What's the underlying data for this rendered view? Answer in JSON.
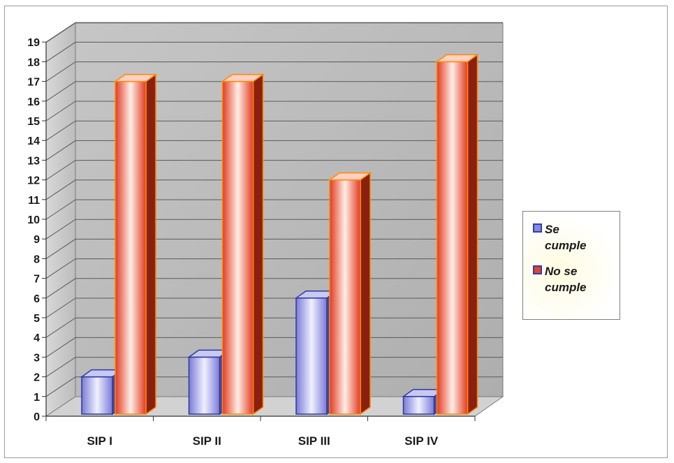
{
  "chart_data": {
    "type": "bar",
    "categories": [
      "SIP I",
      "SIP II",
      "SIP III",
      "SIP IV"
    ],
    "series": [
      {
        "name": "Se cumple",
        "values": [
          2,
          3,
          6,
          1
        ],
        "color": "#8888dd"
      },
      {
        "name": "No se cumple",
        "values": [
          17,
          17,
          12,
          18
        ],
        "color": "#e8402a"
      }
    ],
    "yticks": [
      "0",
      "1",
      "2",
      "3",
      "4",
      "5",
      "6",
      "7",
      "8",
      "9",
      "10",
      "11",
      "12",
      "13",
      "14",
      "15",
      "16",
      "17",
      "18",
      "19"
    ],
    "ylim": [
      0,
      19
    ],
    "grid": true,
    "legend_position": "right",
    "style": "3d-cylinder-bar"
  }
}
